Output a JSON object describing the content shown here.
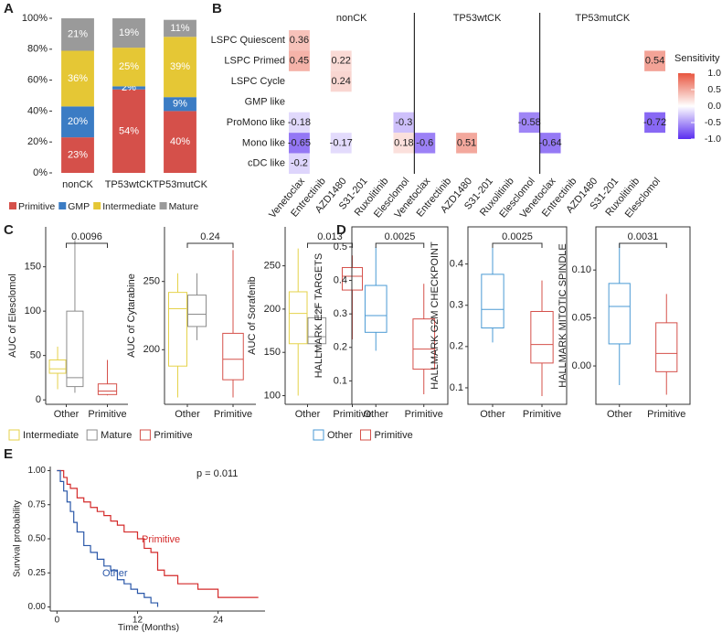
{
  "panel_labels": [
    "A",
    "B",
    "C",
    "D",
    "E"
  ],
  "chart_data": [
    {
      "type": "stacked_bar",
      "categories": [
        "nonCK",
        "TP53wtCK",
        "TP53mutCK"
      ],
      "series": [
        {
          "name": "Primitive",
          "color": "#d5504a",
          "values": [
            23,
            54,
            40
          ],
          "value_labels": [
            "23%",
            "54%",
            "40%"
          ]
        },
        {
          "name": "GMP",
          "color": "#3b7cc4",
          "values": [
            20,
            2,
            9
          ],
          "value_labels": [
            "20%",
            "2%",
            "9%"
          ]
        },
        {
          "name": "Intermediate",
          "color": "#e5c735",
          "values": [
            36,
            25,
            39
          ],
          "value_labels": [
            "36%",
            "25%",
            "39%"
          ]
        },
        {
          "name": "Mature",
          "color": "#9a9a9a",
          "values": [
            21,
            19,
            11
          ],
          "value_labels": [
            "21%",
            "19%",
            "11%"
          ]
        }
      ],
      "ylim": [
        0,
        100
      ],
      "yticks": [
        {
          "value": 0,
          "label": "0%"
        },
        {
          "value": 20,
          "label": "20%"
        },
        {
          "value": 40,
          "label": "40%"
        },
        {
          "value": 60,
          "label": "60%"
        },
        {
          "value": 80,
          "label": "80%"
        },
        {
          "value": 100,
          "label": "100%"
        }
      ],
      "legend": "bottom"
    },
    {
      "type": "heatmap",
      "groups": [
        "nonCK",
        "TP53wtCK",
        "TP53mutCK"
      ],
      "columns": [
        "Venetoclax",
        "Entrectinib",
        "AZD1480",
        "S31-201",
        "Ruxolitinib",
        "Elesclomol",
        "Venetoclax",
        "Entrectinib",
        "AZD1480",
        "S31-201",
        "Ruxolitinib",
        "Elesclomol",
        "Venetoclax",
        "Entrectinib",
        "AZD1480",
        "S31-201",
        "Ruxolitinib",
        "Elesclomol"
      ],
      "rows": [
        "LSPC Quiescent",
        "LSPC Primed",
        "LSPC Cycle",
        "GMP like",
        "ProMono like",
        "Mono like",
        "cDC like"
      ],
      "values": [
        [
          0.36,
          null,
          null,
          null,
          null,
          null,
          null,
          null,
          null,
          null,
          null,
          null,
          null,
          null,
          null,
          null,
          null,
          null
        ],
        [
          0.45,
          null,
          0.22,
          null,
          null,
          null,
          null,
          null,
          null,
          null,
          null,
          null,
          null,
          null,
          null,
          null,
          null,
          0.54
        ],
        [
          null,
          null,
          0.24,
          null,
          null,
          null,
          null,
          null,
          null,
          null,
          null,
          null,
          null,
          null,
          null,
          null,
          null,
          null
        ],
        [
          null,
          null,
          null,
          null,
          null,
          null,
          null,
          null,
          null,
          null,
          null,
          null,
          null,
          null,
          null,
          null,
          null,
          null
        ],
        [
          -0.18,
          null,
          null,
          null,
          null,
          -0.3,
          null,
          null,
          null,
          null,
          null,
          -0.58,
          null,
          null,
          null,
          null,
          null,
          -0.72
        ],
        [
          -0.65,
          null,
          -0.17,
          null,
          null,
          0.18,
          -0.6,
          null,
          0.51,
          null,
          null,
          null,
          -0.64,
          null,
          null,
          null,
          null,
          null
        ],
        [
          -0.2,
          null,
          null,
          null,
          null,
          null,
          null,
          null,
          null,
          null,
          null,
          null,
          null,
          null,
          null,
          null,
          null,
          null
        ]
      ],
      "colorbar_title": "Sensitivity",
      "colorbar_lim": [
        -1,
        1
      ],
      "colorbar_ticks": [
        {
          "value": 1,
          "label": "1.0"
        },
        {
          "value": 0.5,
          "label": "0.5"
        },
        {
          "value": 0,
          "label": "0.0"
        },
        {
          "value": -0.5,
          "label": "-0.5"
        },
        {
          "value": -1,
          "label": "-1.0"
        }
      ],
      "low_color": "#5a2df0",
      "mid_color": "#ffffff",
      "high_color": "#e8553f"
    },
    {
      "type": "box",
      "y_label": "AUC of Elesclomol",
      "categories": [
        "Other",
        "Primitive"
      ],
      "annotation": "0.0096",
      "series": [
        {
          "name": "Intermediate",
          "color": "#e5d24a",
          "stats": [
            {
              "min": 12,
              "q1": 30,
              "median": 35,
              "q3": 45,
              "max": 60
            },
            null
          ]
        },
        {
          "name": "Mature",
          "color": "#8c8c8c",
          "stats": [
            {
              "min": 8,
              "q1": 15,
              "median": 25,
              "q3": 100,
              "max": 180
            },
            null
          ]
        },
        {
          "name": "Primitive",
          "color": "#d5504a",
          "stats": [
            null,
            {
              "min": 5,
              "q1": 6,
              "median": 10,
              "q3": 18,
              "max": 45
            }
          ]
        }
      ],
      "ylim": [
        -5,
        195
      ],
      "yticks": [
        0,
        50,
        100,
        150
      ],
      "legend": "bottom"
    },
    {
      "type": "box",
      "y_label": "AUC of Cytarabine",
      "categories": [
        "Other",
        "Primitive"
      ],
      "annotation": "0.24",
      "series": [
        {
          "name": "Intermediate",
          "color": "#e5d24a",
          "stats": [
            {
              "min": 165,
              "q1": 188,
              "median": 230,
              "q3": 242,
              "max": 256
            },
            null
          ]
        },
        {
          "name": "Mature",
          "color": "#8c8c8c",
          "stats": [
            {
              "min": 207,
              "q1": 217,
              "median": 226,
              "q3": 240,
              "max": 256
            },
            null
          ]
        },
        {
          "name": "Primitive",
          "color": "#d5504a",
          "stats": [
            null,
            {
              "min": 165,
              "q1": 178,
              "median": 193,
              "q3": 212,
              "max": 273
            }
          ]
        }
      ],
      "ylim": [
        160,
        290
      ],
      "yticks": [
        200,
        250
      ]
    },
    {
      "type": "box",
      "y_label": "AUC of Sorafenib",
      "categories": [
        "Other",
        "Primitive"
      ],
      "annotation": "0.013",
      "series": [
        {
          "name": "Intermediate",
          "color": "#e5d24a",
          "stats": [
            {
              "min": 100,
              "q1": 160,
              "median": 195,
              "q3": 220,
              "max": 270
            },
            null
          ]
        },
        {
          "name": "Mature",
          "color": "#8c8c8c",
          "stats": [
            {
              "min": 145,
              "q1": 160,
              "median": 168,
              "q3": 190,
              "max": 205
            },
            null
          ]
        },
        {
          "name": "Primitive",
          "color": "#d5504a",
          "stats": [
            null,
            {
              "min": 165,
              "q1": 222,
              "median": 238,
              "q3": 248,
              "max": 262
            }
          ]
        }
      ],
      "ylim": [
        90,
        295
      ],
      "yticks": [
        100,
        150,
        200,
        250
      ]
    },
    {
      "type": "box",
      "y_label": "HALLMARK E2F TARGETS",
      "categories": [
        "Other",
        "Primitive"
      ],
      "annotation": "0.0025",
      "border": true,
      "series": [
        {
          "name": "Other",
          "color": "#4a9ad4",
          "stats": [
            {
              "min": 0.19,
              "q1": 0.245,
              "median": 0.295,
              "q3": 0.385,
              "max": 0.5
            },
            null
          ]
        },
        {
          "name": "Primitive",
          "color": "#d5504a",
          "stats": [
            null,
            {
              "min": 0.06,
              "q1": 0.135,
              "median": 0.195,
              "q3": 0.285,
              "max": 0.39
            }
          ]
        }
      ],
      "ylim": [
        0.03,
        0.56
      ],
      "yticks": [
        0.1,
        0.2,
        0.3,
        0.4,
        0.5
      ],
      "legend": "bottom"
    },
    {
      "type": "box",
      "y_label": "HALLMARK G2M CHECKPOINT",
      "categories": [
        "Other",
        "Primitive"
      ],
      "annotation": "0.0025",
      "border": true,
      "series": [
        {
          "name": "Other",
          "color": "#4a9ad4",
          "stats": [
            {
              "min": 0.21,
              "q1": 0.245,
              "median": 0.29,
              "q3": 0.375,
              "max": 0.44
            },
            null
          ]
        },
        {
          "name": "Primitive",
          "color": "#d5504a",
          "stats": [
            null,
            {
              "min": 0.08,
              "q1": 0.16,
              "median": 0.205,
              "q3": 0.285,
              "max": 0.36
            }
          ]
        }
      ],
      "ylim": [
        0.06,
        0.49
      ],
      "yticks": [
        0.1,
        0.2,
        0.3,
        0.4
      ]
    },
    {
      "type": "box",
      "y_label": "HALLMARK MITOTIC SPINDLE",
      "categories": [
        "Other",
        "Primitive"
      ],
      "annotation": "0.0031",
      "border": true,
      "series": [
        {
          "name": "Other",
          "color": "#4a9ad4",
          "stats": [
            {
              "min": -0.02,
              "q1": 0.023,
              "median": 0.062,
              "q3": 0.086,
              "max": 0.128
            },
            null
          ]
        },
        {
          "name": "Primitive",
          "color": "#d5504a",
          "stats": [
            null,
            {
              "min": -0.03,
              "q1": -0.006,
              "median": 0.013,
              "q3": 0.045,
              "max": 0.075
            }
          ]
        }
      ],
      "ylim": [
        -0.04,
        0.145
      ],
      "yticks": [
        {
          "value": 0,
          "label": "0.00"
        },
        {
          "value": 0.05,
          "label": "0.05"
        },
        {
          "value": 0.1,
          "label": "0.10"
        }
      ]
    },
    {
      "type": "step",
      "y_label": "Survival probability",
      "x_label": "Time (Months)",
      "annotation": "p = 0.011",
      "series": [
        {
          "name": "Primitive",
          "color": "#d42a2a",
          "x": [
            0,
            1,
            1.5,
            2,
            3,
            4,
            5,
            6,
            7,
            8,
            9,
            10,
            12,
            13,
            14,
            15,
            16,
            18,
            21,
            24,
            30
          ],
          "values": [
            1,
            0.95,
            0.9,
            0.87,
            0.8,
            0.77,
            0.73,
            0.7,
            0.67,
            0.63,
            0.6,
            0.55,
            0.5,
            0.43,
            0.4,
            0.27,
            0.23,
            0.17,
            0.13,
            0.07,
            0.07
          ]
        },
        {
          "name": "Other",
          "color": "#2a57a8",
          "x": [
            0,
            0.5,
            1,
            1.5,
            2,
            2.5,
            3,
            4,
            5,
            6,
            7,
            8,
            9,
            10,
            11,
            12,
            13,
            14,
            15
          ],
          "values": [
            1,
            0.92,
            0.85,
            0.77,
            0.7,
            0.62,
            0.55,
            0.45,
            0.4,
            0.35,
            0.3,
            0.27,
            0.2,
            0.17,
            0.13,
            0.1,
            0.07,
            0.03,
            0
          ]
        }
      ],
      "xlim": [
        -1,
        31
      ],
      "xticks": [
        0,
        12,
        24
      ],
      "ylim": [
        -0.03,
        1.03
      ],
      "yticks": [
        {
          "value": 0,
          "label": "0.00"
        },
        {
          "value": 0.25,
          "label": "0.25"
        },
        {
          "value": 0.5,
          "label": "0.50"
        },
        {
          "value": 0.75,
          "label": "0.75"
        },
        {
          "value": 1,
          "label": "1.00"
        }
      ]
    }
  ]
}
